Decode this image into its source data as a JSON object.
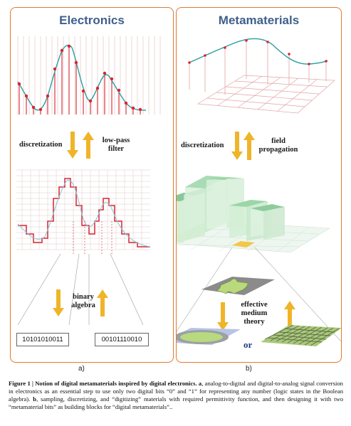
{
  "panel_a": {
    "title": "Electronics",
    "down_label": "discretization",
    "up_label_line1": "low-pass",
    "up_label_line2": "filter",
    "lower_label_line1": "binary",
    "lower_label_line2": "algebra",
    "bits_left": "10101010011",
    "bits_right": "00101110010",
    "sublabel": "a)"
  },
  "panel_b": {
    "title": "Metamaterials",
    "down_label": "discretization",
    "up_label_line1": "field",
    "up_label_line2": "propagation",
    "lower_label_line1": "effective",
    "lower_label_line2": "medium",
    "lower_label_line3": "theory",
    "or_label": "or",
    "sublabel": "b)"
  },
  "caption": {
    "title": "Figure 1 | Notion of digital metamaterials inspired by digital electronics.",
    "a_marker": "a",
    "a_text": ", analog-to-digital and digital-to-analog signal conversion in electronics as an essential step to use only two digital bits “0” and “1” for representing any number (logic states in the Boolean algebra).",
    "b_marker": "b",
    "b_text": ", sampling, discretizing, and “digitizing” materials with required permittivity function, and then designing it with two “metamaterial bits” as building blocks for “digital metamaterials”.."
  },
  "colors": {
    "frame": "#e07a2e",
    "title_blue": "#3e5f8c",
    "signal": "#2a9d9f",
    "sample": "#d8242e",
    "arrow": "#f0b429",
    "block_green": "#9fd6a8",
    "highlight_yellow": "#f3c74a"
  }
}
